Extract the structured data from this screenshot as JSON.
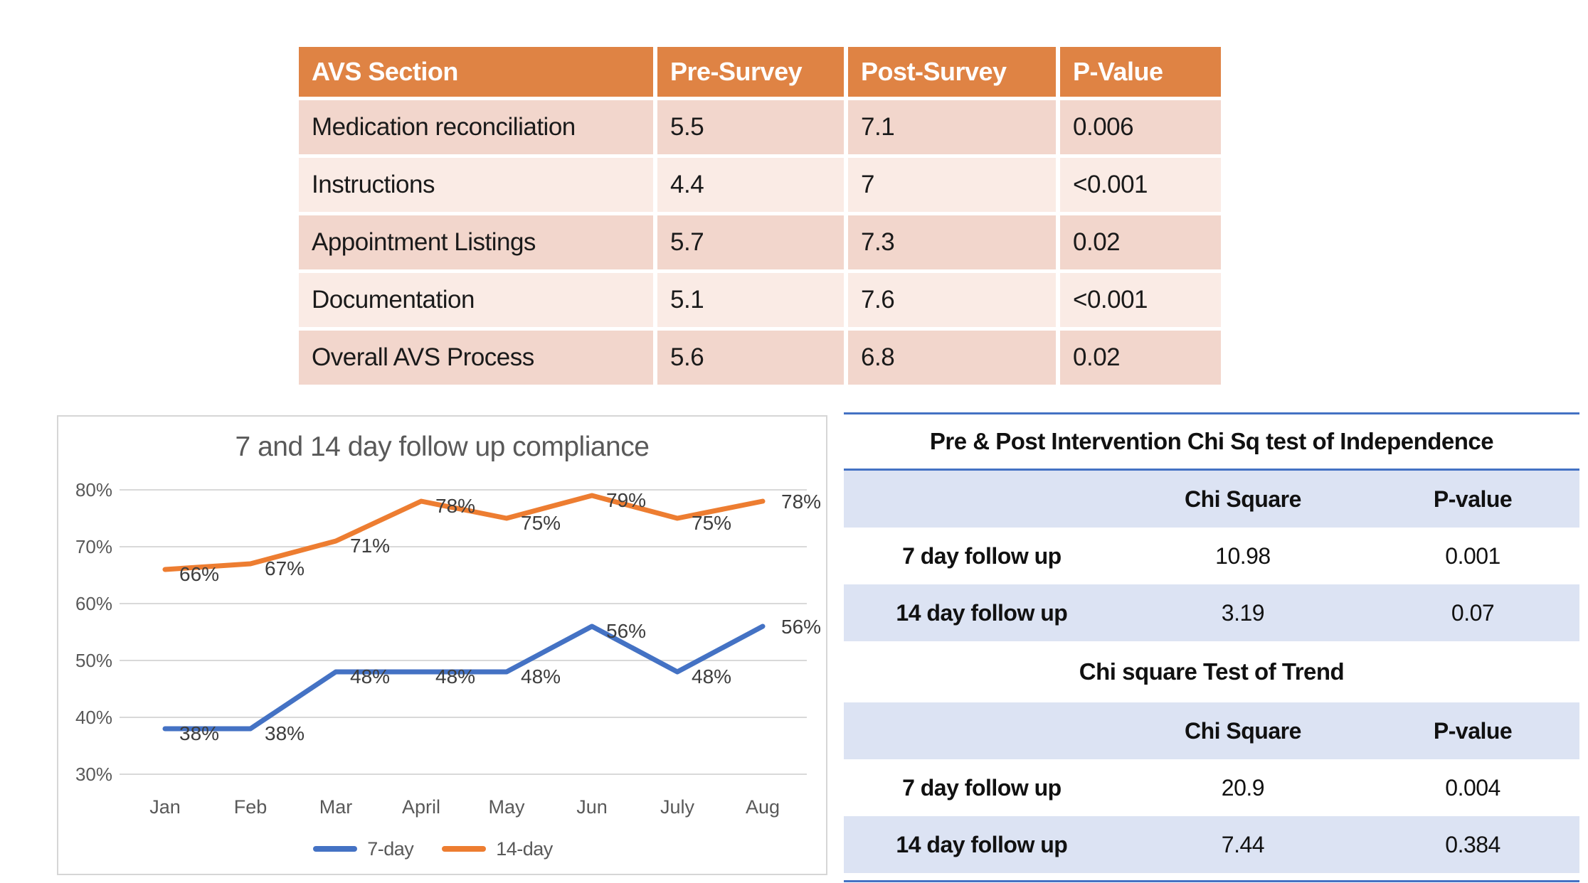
{
  "avs_table": {
    "headers": [
      "AVS Section",
      "Pre-Survey",
      "Post-Survey",
      "P-Value"
    ],
    "rows": [
      [
        "Medication reconciliation",
        "5.5",
        "7.1",
        "0.006"
      ],
      [
        "Instructions",
        "4.4",
        "7",
        "<0.001"
      ],
      [
        "Appointment Listings",
        "5.7",
        "7.3",
        "0.02"
      ],
      [
        "Documentation",
        "5.1",
        "7.6",
        "<0.001"
      ],
      [
        "Overall AVS Process",
        "5.6",
        "6.8",
        "0.02"
      ]
    ]
  },
  "chart_data": {
    "type": "line",
    "title": "7 and 14 day follow up compliance",
    "categories": [
      "Jan",
      "Feb",
      "Mar",
      "April",
      "May",
      "Jun",
      "July",
      "Aug"
    ],
    "series": [
      {
        "name": "7-day",
        "color": "#4472C4",
        "values": [
          38,
          38,
          48,
          48,
          48,
          56,
          48,
          56
        ]
      },
      {
        "name": "14-day",
        "color": "#ED7D31",
        "values": [
          66,
          67,
          71,
          78,
          75,
          79,
          75,
          78
        ]
      }
    ],
    "ylabel": "",
    "xlabel": "",
    "ylim": [
      30,
      80
    ],
    "ytick_step": 10,
    "ytick_format": "percent",
    "grid": true,
    "data_labels": true,
    "legend_position": "bottom"
  },
  "chi_tables": [
    {
      "title": "Pre & Post Intervention Chi Sq test of Independence",
      "headers": [
        "",
        "Chi Square",
        "P-value"
      ],
      "rows": [
        [
          "7 day follow up",
          "10.98",
          "0.001"
        ],
        [
          "14 day follow up",
          "3.19",
          "0.07"
        ]
      ]
    },
    {
      "title": "Chi square Test of Trend",
      "headers": [
        "",
        "Chi Square",
        "P-value"
      ],
      "rows": [
        [
          "7 day follow up",
          "20.9",
          "0.004"
        ],
        [
          "14 day follow up",
          "7.44",
          "0.384"
        ]
      ]
    }
  ],
  "colors": {
    "avs_header_bg": "#DF8344",
    "avs_row_dark": "#F2D6CC",
    "avs_row_light": "#FAEBE5",
    "chi_band_bg": "#DCE3F3",
    "chi_rule_blue": "#4472C4",
    "series_7day_blue": "#4472C4",
    "series_14day_orange": "#ED7D31",
    "gridline_gray": "#D9D9D9",
    "axis_text_gray": "#595959"
  }
}
